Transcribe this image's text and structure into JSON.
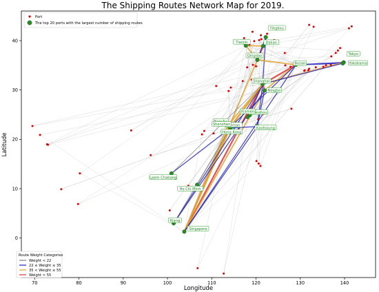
{
  "chart_data": {
    "type": "scatter",
    "title": "The Shipping Routes Network Map for 2019.",
    "xlabel": "Longitude",
    "ylabel": "Latitude",
    "xlim": [
      67,
      147
    ],
    "ylim": [
      -8,
      46
    ],
    "xticks": [
      70,
      80,
      90,
      100,
      110,
      120,
      130,
      140
    ],
    "yticks": [
      0,
      10,
      20,
      30,
      40
    ],
    "grid": false,
    "top_legend": {
      "placement": "top-left",
      "entries": [
        {
          "label": "Port",
          "marker": "red-dot"
        },
        {
          "label": "The top 20 ports with the largest number of shipping routes",
          "marker": "green-dot"
        }
      ]
    },
    "weight_legend": {
      "placement": "bottom-left",
      "title": "Route Weight Categories",
      "entries": [
        {
          "label": "Weight < 22",
          "color": "#7f7f7f"
        },
        {
          "label": "22 ≤ Weight ≤ 35",
          "color": "#1f1fbf"
        },
        {
          "label": "35 < Weight ≤ 55",
          "color": "#e0a030"
        },
        {
          "label": "Weight > 55",
          "color": "#e03030"
        }
      ]
    },
    "colors": {
      "port": "#e00000",
      "top_port": "#2a8a2a",
      "label_text": "#1a8a1a",
      "label_border": "#2a9a2a"
    },
    "top_ports": [
      {
        "name": "Yingkou",
        "lon": 122.2,
        "lat": 40.7
      },
      {
        "name": "Dalian",
        "lon": 121.6,
        "lat": 38.9
      },
      {
        "name": "Tianjin",
        "lon": 117.7,
        "lat": 39.0
      },
      {
        "name": "Qingdao",
        "lon": 120.3,
        "lat": 36.1
      },
      {
        "name": "Busan",
        "lon": 129.0,
        "lat": 35.1
      },
      {
        "name": "Tokyo",
        "lon": 139.8,
        "lat": 35.6
      },
      {
        "name": "Yokohama",
        "lon": 139.6,
        "lat": 35.4
      },
      {
        "name": "Shanghai",
        "lon": 121.5,
        "lat": 31.2
      },
      {
        "name": "Ningbo",
        "lon": 121.9,
        "lat": 29.9
      },
      {
        "name": "Quanzhou",
        "lon": 118.6,
        "lat": 24.9
      },
      {
        "name": "Xiamen",
        "lon": 118.1,
        "lat": 24.5
      },
      {
        "name": "Nansha",
        "lon": 113.6,
        "lat": 22.8
      },
      {
        "name": "Kaohsiung",
        "lon": 120.3,
        "lat": 22.6
      },
      {
        "name": "Yantian",
        "lon": 114.3,
        "lat": 22.6
      },
      {
        "name": "Shenzhen",
        "lon": 114.1,
        "lat": 22.5
      },
      {
        "name": "Hong Kong",
        "lon": 114.2,
        "lat": 22.3
      },
      {
        "name": "Laem Chabang",
        "lon": 100.9,
        "lat": 13.1
      },
      {
        "name": "Ho Chi Minh",
        "lon": 106.7,
        "lat": 10.8
      },
      {
        "name": "Klang",
        "lon": 101.4,
        "lat": 3.0
      },
      {
        "name": "Singapore",
        "lon": 103.8,
        "lat": 1.3
      }
    ],
    "ports": [
      [
        69.5,
        22.7
      ],
      [
        71.2,
        20.9
      ],
      [
        72.8,
        19.0
      ],
      [
        73.0,
        18.9
      ],
      [
        76.0,
        9.9
      ],
      [
        80.2,
        13.1
      ],
      [
        79.8,
        6.9
      ],
      [
        91.8,
        21.8
      ],
      [
        96.2,
        16.8
      ],
      [
        100.5,
        5.6
      ],
      [
        101.4,
        3.0
      ],
      [
        103.8,
        1.3
      ],
      [
        106.8,
        -6.1
      ],
      [
        112.7,
        -7.2
      ],
      [
        104.7,
        10.6
      ],
      [
        107.8,
        21.0
      ],
      [
        108.3,
        21.7
      ],
      [
        110.4,
        21.2
      ],
      [
        111.0,
        30.8
      ],
      [
        113.8,
        29.8
      ],
      [
        114.3,
        30.5
      ],
      [
        117.0,
        31.8
      ],
      [
        119.0,
        32.1
      ],
      [
        118.0,
        34.6
      ],
      [
        119.3,
        35.1
      ],
      [
        120.0,
        34.8
      ],
      [
        121.0,
        32.0
      ],
      [
        122.0,
        30.0
      ],
      [
        120.5,
        24.1
      ],
      [
        121.6,
        25.1
      ],
      [
        120.1,
        15.6
      ],
      [
        120.6,
        15.1
      ],
      [
        121.0,
        14.6
      ],
      [
        118.5,
        39.2
      ],
      [
        119.6,
        39.9
      ],
      [
        121.2,
        40.3
      ],
      [
        121.1,
        41.1
      ],
      [
        122.5,
        41.4
      ],
      [
        124.1,
        40.1
      ],
      [
        126.5,
        37.5
      ],
      [
        126.6,
        35.0
      ],
      [
        127.8,
        34.7
      ],
      [
        128.8,
        35.2
      ],
      [
        129.3,
        35.5
      ],
      [
        128.0,
        26.2
      ],
      [
        131.0,
        34.0
      ],
      [
        131.8,
        34.0
      ],
      [
        130.9,
        33.9
      ],
      [
        132.0,
        34.3
      ],
      [
        133.5,
        34.6
      ],
      [
        135.2,
        34.7
      ],
      [
        135.8,
        35.0
      ],
      [
        136.9,
        35.1
      ],
      [
        137.0,
        36.8
      ],
      [
        138.0,
        37.5
      ],
      [
        138.5,
        38.0
      ],
      [
        139.0,
        38.5
      ],
      [
        141.0,
        42.5
      ],
      [
        141.6,
        42.9
      ],
      [
        132.0,
        43.2
      ],
      [
        133.0,
        42.8
      ],
      [
        120.7,
        40.1
      ],
      [
        119.2,
        41.8
      ],
      [
        117.3,
        40.5
      ]
    ],
    "routes": [
      {
        "from": "Singapore",
        "to": "Shanghai",
        "w": 60
      },
      {
        "from": "Singapore",
        "to": "Ningbo",
        "w": 48
      },
      {
        "from": "Singapore",
        "to": "Hong Kong",
        "w": 45
      },
      {
        "from": "Singapore",
        "to": "Shenzhen",
        "w": 40
      },
      {
        "from": "Singapore",
        "to": "Nansha",
        "w": 38
      },
      {
        "from": "Singapore",
        "to": "Kaohsiung",
        "w": 30
      },
      {
        "from": "Singapore",
        "to": "Qingdao",
        "w": 40
      },
      {
        "from": "Singapore",
        "to": "Busan",
        "w": 28
      },
      {
        "from": "Klang",
        "to": "Shanghai",
        "w": 30
      },
      {
        "from": "Klang",
        "to": "Ningbo",
        "w": 25
      },
      {
        "from": "Klang",
        "to": "Hong Kong",
        "w": 20
      },
      {
        "from": "Laem Chabang",
        "to": "Hong Kong",
        "w": 30
      },
      {
        "from": "Laem Chabang",
        "to": "Shanghai",
        "w": 18
      },
      {
        "from": "Ho Chi Minh",
        "to": "Hong Kong",
        "w": 18
      },
      {
        "from": "Shanghai",
        "to": "Busan",
        "w": 65
      },
      {
        "from": "Ningbo",
        "to": "Busan",
        "w": 50
      },
      {
        "from": "Busan",
        "to": "Tokyo",
        "w": 30
      },
      {
        "from": "Busan",
        "to": "Yokohama",
        "w": 28
      },
      {
        "from": "Shanghai",
        "to": "Tokyo",
        "w": 40
      },
      {
        "from": "Shanghai",
        "to": "Yokohama",
        "w": 25
      },
      {
        "from": "Dalian",
        "to": "Qingdao",
        "w": 60
      },
      {
        "from": "Dalian",
        "to": "Tianjin",
        "w": 40
      },
      {
        "from": "Tianjin",
        "to": "Qingdao",
        "w": 50
      },
      {
        "from": "Yingkou",
        "to": "Shanghai",
        "w": 30
      },
      {
        "from": "Yingkou",
        "to": "Qingdao",
        "w": 28
      },
      {
        "from": "Qingdao",
        "to": "Busan",
        "w": 45
      },
      {
        "from": "Shanghai",
        "to": "Ningbo",
        "w": 70
      },
      {
        "from": "Shanghai",
        "to": "Hong Kong",
        "w": 45
      },
      {
        "from": "Ningbo",
        "to": "Kaohsiung",
        "w": 25
      },
      {
        "from": "Shanghai",
        "to": "Kaohsiung",
        "w": 35
      },
      {
        "from": "Quanzhou",
        "to": "Shanghai",
        "w": 20
      },
      {
        "from": "Xiamen",
        "to": "Shanghai",
        "w": 30
      },
      {
        "from": "Hong Kong",
        "to": "Kaohsiung",
        "w": 30
      },
      {
        "from": "Shenzhen",
        "to": "Shanghai",
        "w": 40
      },
      {
        "from": "Nansha",
        "to": "Shanghai",
        "w": 40
      },
      {
        "from": "Yantian",
        "to": "Busan",
        "w": 30
      }
    ]
  }
}
